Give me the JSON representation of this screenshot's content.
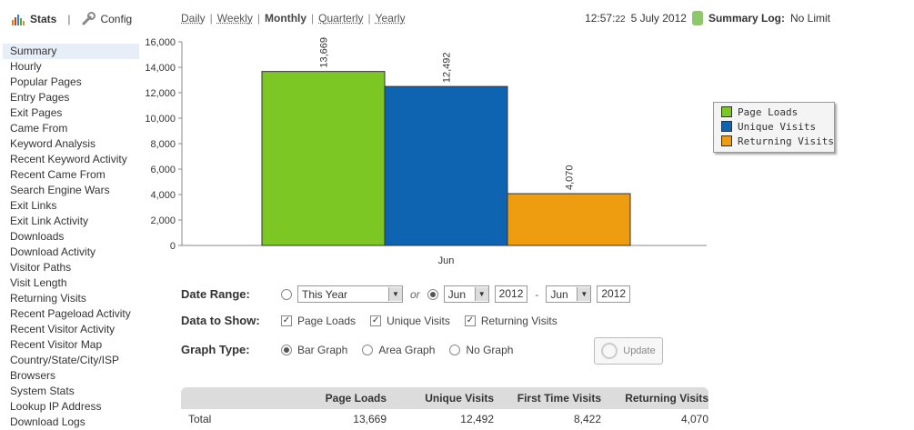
{
  "topnav": {
    "stats_label": "Stats",
    "config_label": "Config",
    "separator": "|"
  },
  "periods": {
    "items": [
      "Daily",
      "Weekly",
      "Monthly",
      "Quarterly",
      "Yearly"
    ],
    "current": "Monthly"
  },
  "status": {
    "time_main": "12:57:",
    "time_seconds": "22",
    "date": "5 July 2012",
    "log_label": "Summary Log:",
    "log_value": "No Limit"
  },
  "sidebar": {
    "items": [
      {
        "label": "Summary",
        "selected": true
      },
      {
        "label": "Hourly"
      },
      {
        "label": "Popular Pages"
      },
      {
        "label": "Entry Pages"
      },
      {
        "label": "Exit Pages"
      },
      {
        "label": "Came From"
      },
      {
        "label": "Keyword Analysis"
      },
      {
        "label": "Recent Keyword Activity"
      },
      {
        "label": "Recent Came From"
      },
      {
        "label": "Search Engine Wars"
      },
      {
        "label": "Exit Links"
      },
      {
        "label": "Exit Link Activity"
      },
      {
        "label": "Downloads"
      },
      {
        "label": "Download Activity"
      },
      {
        "label": "Visitor Paths"
      },
      {
        "label": "Visit Length"
      },
      {
        "label": "Returning Visits"
      },
      {
        "label": "Recent Pageload Activity"
      },
      {
        "label": "Recent Visitor Activity"
      },
      {
        "label": "Recent Visitor Map"
      },
      {
        "label": "Country/State/City/ISP"
      },
      {
        "label": "Browsers"
      },
      {
        "label": "System Stats"
      },
      {
        "label": "Lookup IP Address"
      },
      {
        "label": "Download Logs"
      }
    ]
  },
  "chart_data": {
    "type": "bar",
    "categories": [
      "Jun"
    ],
    "series": [
      {
        "name": "Page Loads",
        "values": [
          13669
        ],
        "color": "#7dc724"
      },
      {
        "name": "Unique Visits",
        "values": [
          12492
        ],
        "color": "#0f64b1"
      },
      {
        "name": "Returning Visits",
        "values": [
          4070
        ],
        "color": "#ee9d10"
      }
    ],
    "data_labels": [
      "13,669",
      "12,492",
      "4,070"
    ],
    "ylim": [
      0,
      16000
    ],
    "yticks": [
      0,
      2000,
      4000,
      6000,
      8000,
      10000,
      12000,
      14000,
      16000
    ],
    "ytick_labels": [
      "0",
      "2,000",
      "4,000",
      "6,000",
      "8,000",
      "10,000",
      "12,000",
      "14,000",
      "16,000"
    ],
    "legend_position": "right",
    "grid": false
  },
  "controls": {
    "date_range_label": "Date Range:",
    "range_option": "This Year",
    "or_label": "or",
    "from_month": "Jun",
    "from_year": "2012",
    "dash": "-",
    "to_month": "Jun",
    "to_year": "2012",
    "data_label": "Data to Show:",
    "data_options": [
      "Page Loads",
      "Unique Visits",
      "Returning Visits"
    ],
    "graph_label": "Graph Type:",
    "graph_options": [
      "Bar Graph",
      "Area Graph",
      "No Graph"
    ],
    "graph_selected": "Bar Graph",
    "update_label": "Update"
  },
  "table": {
    "headers": [
      "",
      "Page Loads",
      "Unique Visits",
      "First Time Visits",
      "Returning Visits"
    ],
    "rows": [
      [
        "Total",
        "13,669",
        "12,492",
        "8,422",
        "4,070"
      ]
    ]
  },
  "colors": {
    "green_badge": "#8fc86a",
    "selected_bg": "#e8eef7"
  }
}
